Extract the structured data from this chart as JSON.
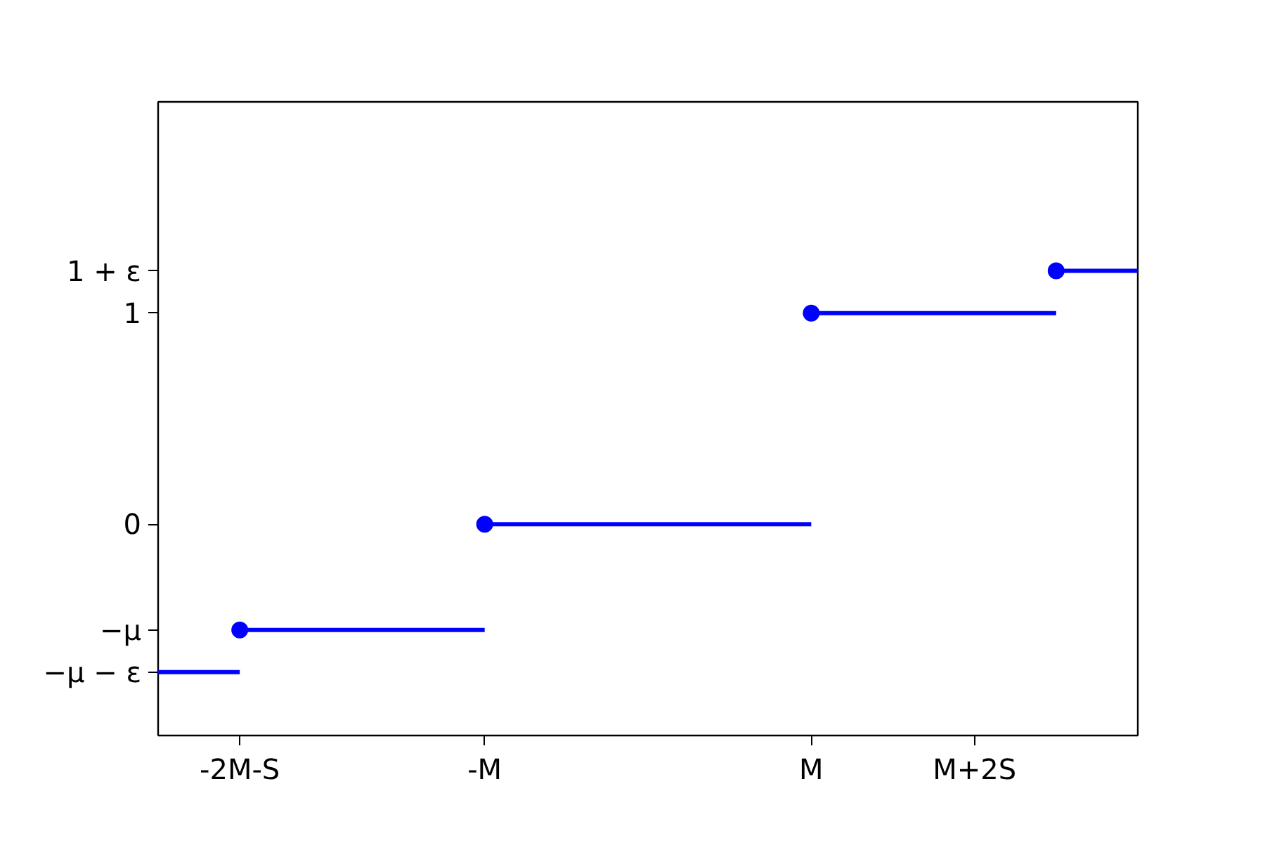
{
  "chart_data": {
    "type": "line",
    "color": "#0000ff",
    "categories": [
      null,
      "-2M-S",
      null,
      null,
      "-M",
      null,
      null,
      null,
      "M",
      null,
      "M+2S",
      null,
      null
    ],
    "series": [
      {
        "type": "line",
        "values": [
          -0.7,
          -0.7,
          null,
          null,
          null,
          null,
          null,
          null,
          null,
          null,
          null,
          null,
          null
        ]
      },
      {
        "type": "line",
        "values": [
          null,
          -0.5,
          -0.5,
          -0.5,
          -0.5,
          null,
          null,
          null,
          null,
          null,
          null,
          null,
          null
        ]
      },
      {
        "type": "line",
        "values": [
          null,
          null,
          null,
          null,
          0,
          0,
          0,
          0,
          0,
          null,
          null,
          null,
          null
        ]
      },
      {
        "type": "line",
        "values": [
          null,
          null,
          null,
          null,
          null,
          null,
          null,
          null,
          1,
          1,
          1,
          1,
          null
        ]
      },
      {
        "type": "line",
        "values": [
          null,
          null,
          null,
          null,
          null,
          null,
          null,
          null,
          null,
          null,
          null,
          1.2,
          1.2
        ]
      },
      {
        "type": "scatter",
        "marker": "circle",
        "values": [
          null,
          -0.5,
          null,
          null,
          0,
          null,
          null,
          null,
          1,
          null,
          null,
          1.2,
          null
        ]
      }
    ],
    "ylim": [
      -1,
      2
    ],
    "yticks": [
      {
        "value": -0.7,
        "label": "−μ − ε"
      },
      {
        "value": -0.5,
        "label": "−μ"
      },
      {
        "value": 0,
        "label": "0"
      },
      {
        "value": 1,
        "label": "1"
      },
      {
        "value": 1.2,
        "label": "1 + ε"
      }
    ]
  }
}
